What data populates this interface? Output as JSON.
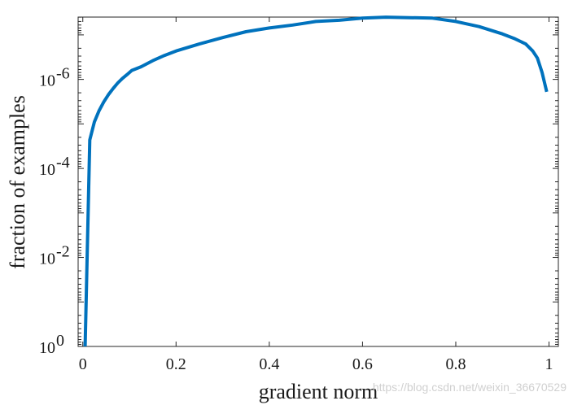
{
  "chart_data": {
    "type": "line",
    "xlabel": "gradient norm",
    "ylabel": "fraction of examples",
    "xlim": [
      -0.01,
      1.02
    ],
    "ylim_log10": [
      -7.4,
      0
    ],
    "yscale": "log",
    "grid": false,
    "x_ticks": [
      0,
      0.2,
      0.4,
      0.6,
      0.8,
      1
    ],
    "x_tick_labels": [
      "0",
      "0.2",
      "0.4",
      "0.6",
      "0.8",
      "1"
    ],
    "y_ticks_log10": [
      0,
      -2,
      -4,
      -6
    ],
    "y_tick_labels": [
      {
        "base": "10",
        "exp": "0"
      },
      {
        "base": "10",
        "exp": "-2"
      },
      {
        "base": "10",
        "exp": "-4"
      },
      {
        "base": "10",
        "exp": "-6"
      }
    ],
    "series": [
      {
        "color": "#0072BD",
        "x": [
          0.005,
          0.015,
          0.025,
          0.035,
          0.045,
          0.055,
          0.065,
          0.075,
          0.085,
          0.095,
          0.105,
          0.125,
          0.15,
          0.175,
          0.2,
          0.25,
          0.3,
          0.35,
          0.4,
          0.45,
          0.5,
          0.55,
          0.6,
          0.65,
          0.7,
          0.75,
          0.8,
          0.85,
          0.9,
          0.925,
          0.95,
          0.965,
          0.975,
          0.985,
          0.995
        ],
        "y": [
          1.0,
          2.3e-05,
          9e-06,
          5e-06,
          3.2e-06,
          2.2e-06,
          1.6e-06,
          1.2e-06,
          9.5e-07,
          7.8e-07,
          6.3e-07,
          5.2e-07,
          3.8e-07,
          2.9e-07,
          2.3e-07,
          1.6e-07,
          1.15e-07,
          8.5e-08,
          7e-08,
          6e-08,
          5e-08,
          4.7e-08,
          4.2e-08,
          4e-08,
          4.1e-08,
          4.2e-08,
          5e-08,
          6.5e-08,
          9.5e-08,
          1.2e-07,
          1.6e-07,
          2.3e-07,
          3.3e-07,
          7e-07,
          1.9e-06
        ]
      }
    ]
  },
  "watermark": "https://blog.csdn.net/weixin_36670529"
}
